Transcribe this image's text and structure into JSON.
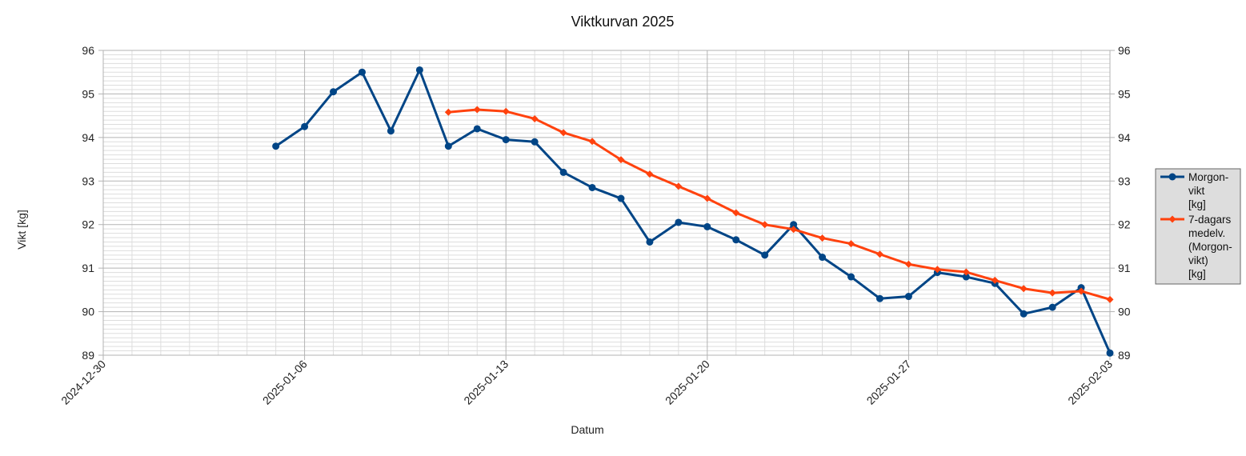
{
  "chart_data": {
    "type": "line",
    "title": "Viktkurvan 2025",
    "xlabel": "Datum",
    "ylabel": "Vikt [kg]",
    "ylim": [
      89,
      96
    ],
    "y_ticks": [
      "89",
      "90",
      "91",
      "92",
      "93",
      "94",
      "95",
      "96"
    ],
    "x_range": [
      "2024-12-30",
      "2025-02-03"
    ],
    "x_ticks": [
      "2024-12-30",
      "2025-01-06",
      "2025-01-13",
      "2025-01-20",
      "2025-01-27",
      "2025-02-03"
    ],
    "grid": true,
    "secondary_y_axis": true,
    "legend_position": "right",
    "series": [
      {
        "name": "Morgon-vikt [kg]",
        "legend_lines": [
          "Morgon-",
          "vikt",
          "[kg]"
        ],
        "color": "#004586",
        "marker": "circle",
        "x": [
          "2025-01-05",
          "2025-01-06",
          "2025-01-07",
          "2025-01-08",
          "2025-01-09",
          "2025-01-10",
          "2025-01-11",
          "2025-01-12",
          "2025-01-13",
          "2025-01-14",
          "2025-01-15",
          "2025-01-16",
          "2025-01-17",
          "2025-01-18",
          "2025-01-19",
          "2025-01-20",
          "2025-01-21",
          "2025-01-22",
          "2025-01-23",
          "2025-01-24",
          "2025-01-25",
          "2025-01-26",
          "2025-01-27",
          "2025-01-28",
          "2025-01-29",
          "2025-01-30",
          "2025-01-31",
          "2025-02-01",
          "2025-02-02",
          "2025-02-03"
        ],
        "values": [
          93.8,
          94.25,
          95.05,
          95.5,
          94.15,
          95.55,
          93.8,
          94.2,
          93.95,
          93.9,
          93.2,
          92.85,
          92.6,
          91.6,
          92.05,
          91.95,
          91.65,
          91.3,
          92.0,
          91.25,
          90.8,
          90.3,
          90.35,
          90.9,
          90.8,
          90.65,
          89.95,
          90.1,
          90.55,
          89.05
        ]
      },
      {
        "name": "7-dagars medelv. (Morgon-vikt) [kg]",
        "legend_lines": [
          "7-dagars",
          "medelv.",
          "(Morgon-",
          "vikt)",
          "[kg]"
        ],
        "color": "#ff420e",
        "marker": "diamond",
        "x": [
          "2025-01-11",
          "2025-01-12",
          "2025-01-13",
          "2025-01-14",
          "2025-01-15",
          "2025-01-16",
          "2025-01-17",
          "2025-01-18",
          "2025-01-19",
          "2025-01-20",
          "2025-01-21",
          "2025-01-22",
          "2025-01-23",
          "2025-01-24",
          "2025-01-25",
          "2025-01-26",
          "2025-01-27",
          "2025-01-28",
          "2025-01-29",
          "2025-01-30",
          "2025-01-31",
          "2025-02-01",
          "2025-02-02",
          "2025-02-03"
        ],
        "values": [
          94.58,
          94.64,
          94.6,
          94.43,
          94.11,
          93.91,
          93.49,
          93.16,
          92.88,
          92.6,
          92.27,
          92.0,
          91.89,
          91.69,
          91.56,
          91.32,
          91.09,
          90.97,
          90.91,
          90.72,
          90.53,
          90.43,
          90.47,
          90.28
        ]
      }
    ]
  }
}
